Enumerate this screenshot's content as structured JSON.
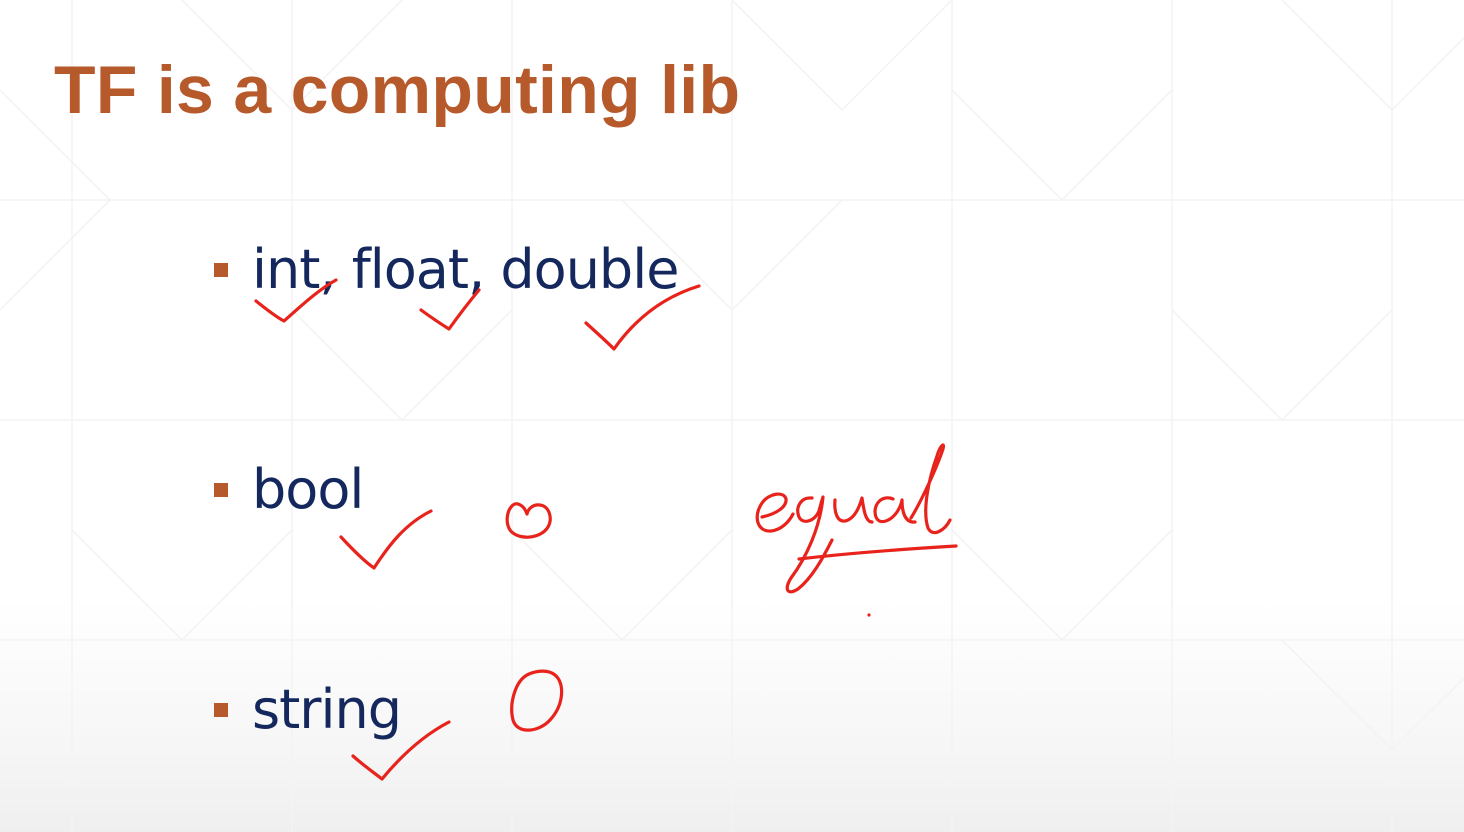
{
  "slide": {
    "title": "TF is a computing lib",
    "bullets": [
      {
        "text": "int, float, double"
      },
      {
        "text": "bool"
      },
      {
        "text": "string"
      }
    ],
    "handwritten_annotations": {
      "note": "equal",
      "marks": [
        "checkmark",
        "checkmark",
        "checkmark",
        "checkmark",
        "heart-shape",
        "circle",
        "checkmark"
      ]
    }
  },
  "colors": {
    "title": "#b75a2b",
    "bullet_marker": "#b75a2b",
    "bullet_text": "#14285e",
    "ink": "#e8231c",
    "background": "#ffffff"
  }
}
